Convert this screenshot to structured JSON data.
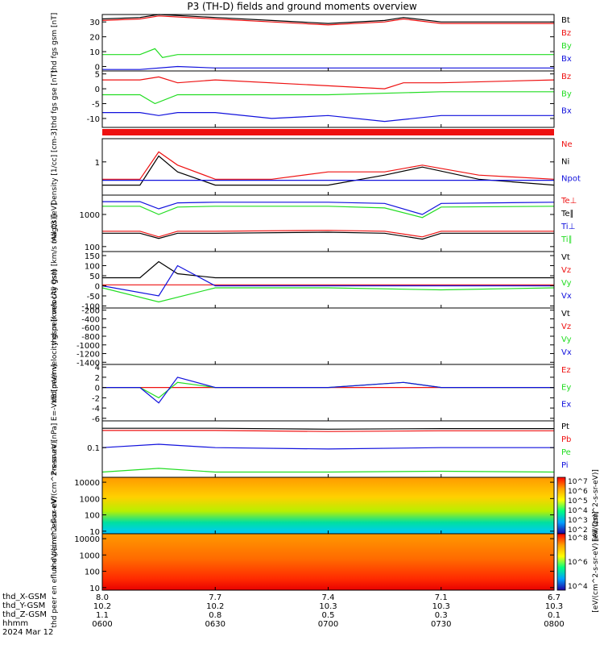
{
  "title": "P3 (TH-D) fields and ground moments overview",
  "colors": {
    "black": "#000000",
    "red": "#ee1111",
    "green": "#22dd22",
    "blue": "#1111dd"
  },
  "chart_data": [
    {
      "type": "line",
      "panel": "fgs_gsm",
      "ylabel": "thd fgs gsm [nT]",
      "ylim": [
        -3,
        35
      ],
      "yticks": [
        0,
        10,
        20,
        30
      ],
      "series": [
        {
          "name": "Bt",
          "color": "black",
          "x": [
            0,
            10,
            15,
            30,
            45,
            60,
            75,
            80,
            90,
            100,
            120
          ],
          "y": [
            32,
            33,
            35,
            33,
            31,
            29,
            31,
            33,
            30,
            30,
            30
          ]
        },
        {
          "name": "Bz",
          "color": "red",
          "x": [
            0,
            10,
            15,
            30,
            45,
            60,
            75,
            80,
            90,
            100,
            120
          ],
          "y": [
            31,
            32,
            34,
            32,
            30,
            28,
            30,
            32,
            29,
            29,
            29
          ]
        },
        {
          "name": "By",
          "color": "green",
          "x": [
            0,
            10,
            14,
            16,
            20,
            30,
            60,
            90,
            120
          ],
          "y": [
            8,
            8,
            12,
            6,
            8,
            8,
            8,
            8,
            8
          ]
        },
        {
          "name": "Bx",
          "color": "blue",
          "x": [
            0,
            10,
            20,
            30,
            60,
            90,
            120
          ],
          "y": [
            -2,
            -2,
            0,
            -1,
            -1,
            -1,
            -1
          ]
        }
      ]
    },
    {
      "type": "line",
      "panel": "fgs_gse",
      "ylabel": "thd fgs gse [nT]",
      "ylim": [
        -13,
        6
      ],
      "yticks": [
        -10,
        -5,
        0,
        5
      ],
      "series": [
        {
          "name": "Bz",
          "color": "red",
          "x": [
            0,
            10,
            15,
            20,
            30,
            60,
            75,
            80,
            90,
            120
          ],
          "y": [
            3,
            3,
            4,
            2,
            3,
            1,
            0,
            2,
            2,
            3
          ]
        },
        {
          "name": "By",
          "color": "green",
          "x": [
            0,
            10,
            14,
            20,
            30,
            60,
            90,
            120
          ],
          "y": [
            -2,
            -2,
            -5,
            -2,
            -2,
            -2,
            -1,
            -1
          ]
        },
        {
          "name": "Bx",
          "color": "blue",
          "x": [
            0,
            10,
            15,
            20,
            30,
            45,
            60,
            75,
            90,
            120
          ],
          "y": [
            -8,
            -8,
            -9,
            -8,
            -8,
            -10,
            -9,
            -11,
            -9,
            -9
          ]
        }
      ]
    },
    {
      "type": "line",
      "panel": "density",
      "ylabel": "Density [1/cc] [cm-3]",
      "scale": "log",
      "ylim": [
        0.1,
        5
      ],
      "yticks": [
        1
      ],
      "series": [
        {
          "name": "Ne",
          "color": "red",
          "x": [
            0,
            10,
            15,
            20,
            30,
            45,
            60,
            75,
            85,
            100,
            120
          ],
          "y": [
            0.3,
            0.3,
            2.0,
            0.8,
            0.3,
            0.3,
            0.5,
            0.5,
            0.8,
            0.4,
            0.3
          ]
        },
        {
          "name": "Ni",
          "color": "black",
          "x": [
            0,
            10,
            15,
            20,
            30,
            45,
            60,
            75,
            85,
            100,
            120
          ],
          "y": [
            0.2,
            0.2,
            1.5,
            0.5,
            0.2,
            0.2,
            0.2,
            0.4,
            0.7,
            0.3,
            0.2
          ]
        },
        {
          "name": "Npot",
          "color": "blue",
          "x": [
            0,
            120
          ],
          "y": [
            0.28,
            0.28
          ]
        }
      ]
    },
    {
      "type": "line",
      "panel": "temperature",
      "ylabel": "magt3 [eV]",
      "scale": "log",
      "ylim": [
        70,
        4000
      ],
      "yticks": [
        100,
        1000
      ],
      "series": [
        {
          "name": "Te⊥",
          "color": "red",
          "x": [
            0,
            10,
            15,
            20,
            30,
            60,
            75,
            85,
            90,
            120
          ],
          "y": [
            300,
            300,
            200,
            300,
            300,
            320,
            300,
            200,
            300,
            300
          ]
        },
        {
          "name": "Te∥",
          "color": "black",
          "x": [
            0,
            10,
            15,
            20,
            30,
            60,
            75,
            85,
            90,
            120
          ],
          "y": [
            260,
            260,
            180,
            260,
            260,
            280,
            260,
            170,
            260,
            260
          ]
        },
        {
          "name": "Ti⊥",
          "color": "blue",
          "x": [
            0,
            10,
            15,
            20,
            30,
            60,
            75,
            85,
            90,
            120
          ],
          "y": [
            2500,
            2500,
            1500,
            2300,
            2400,
            2400,
            2200,
            1000,
            2200,
            2400
          ]
        },
        {
          "name": "Ti∥",
          "color": "green",
          "x": [
            0,
            10,
            15,
            20,
            30,
            60,
            75,
            85,
            90,
            120
          ],
          "y": [
            1800,
            1800,
            1000,
            1700,
            1800,
            1800,
            1600,
            800,
            1700,
            1800
          ]
        }
      ]
    },
    {
      "type": "line",
      "panel": "peir_velocity",
      "ylabel": "thd peir velocity gsm [km/s (All Qs)]",
      "ylim": [
        -110,
        170
      ],
      "yticks": [
        -100,
        -50,
        0,
        50,
        100,
        150
      ],
      "series": [
        {
          "name": "Vt",
          "color": "black",
          "x": [
            0,
            10,
            15,
            20,
            30,
            60,
            90,
            120
          ],
          "y": [
            40,
            40,
            120,
            60,
            40,
            40,
            40,
            40
          ]
        },
        {
          "name": "Vz",
          "color": "red",
          "x": [
            0,
            30,
            60,
            90,
            120
          ],
          "y": [
            5,
            5,
            5,
            5,
            5
          ]
        },
        {
          "name": "Vy",
          "color": "green",
          "x": [
            0,
            15,
            30,
            60,
            90,
            120
          ],
          "y": [
            -10,
            -80,
            -10,
            -10,
            -20,
            -10
          ]
        },
        {
          "name": "Vx",
          "color": "blue",
          "x": [
            0,
            15,
            20,
            30,
            60,
            90,
            120
          ],
          "y": [
            0,
            -50,
            100,
            0,
            0,
            0,
            0
          ]
        }
      ]
    },
    {
      "type": "line",
      "panel": "peer_velocity",
      "ylabel": "thd peer velocity gsm [km/s (All Qs)]",
      "ylim": [
        -1450,
        -150
      ],
      "yticks": [
        -200,
        -400,
        -600,
        -800,
        -1000,
        -1200,
        -1400
      ],
      "series": [
        {
          "name": "Vt",
          "color": "black",
          "x": [],
          "y": []
        },
        {
          "name": "Vz",
          "color": "red",
          "x": [],
          "y": []
        },
        {
          "name": "Vy",
          "color": "green",
          "x": [],
          "y": []
        },
        {
          "name": "Vx",
          "color": "blue",
          "x": [],
          "y": []
        }
      ]
    },
    {
      "type": "line",
      "panel": "efield",
      "ylabel": "E=-VxB [mV/m]",
      "ylim": [
        -6.5,
        4.5
      ],
      "yticks": [
        4,
        2,
        0,
        -2,
        -4,
        -6
      ],
      "series": [
        {
          "name": "Ez",
          "color": "red",
          "x": [
            0,
            30,
            60,
            90,
            120
          ],
          "y": [
            0,
            0,
            0,
            0,
            0
          ]
        },
        {
          "name": "Ey",
          "color": "green",
          "x": [
            0,
            10,
            15,
            20,
            30,
            60,
            80,
            90,
            120
          ],
          "y": [
            0,
            0,
            -2,
            1,
            0,
            0,
            1,
            0,
            0
          ]
        },
        {
          "name": "Ex",
          "color": "blue",
          "x": [
            0,
            10,
            15,
            20,
            30,
            60,
            80,
            90,
            120
          ],
          "y": [
            0,
            0,
            -3,
            2,
            0,
            0,
            1,
            0,
            0
          ]
        }
      ]
    },
    {
      "type": "line",
      "panel": "pressure",
      "ylabel": "Pressure [nPa]",
      "scale": "log",
      "ylim": [
        0.01,
        0.8
      ],
      "yticks": [
        0.1
      ],
      "series": [
        {
          "name": "Pt",
          "color": "black",
          "x": [
            0,
            30,
            60,
            90,
            120
          ],
          "y": [
            0.45,
            0.45,
            0.42,
            0.44,
            0.44
          ]
        },
        {
          "name": "Pb",
          "color": "red",
          "x": [
            0,
            30,
            60,
            90,
            120
          ],
          "y": [
            0.38,
            0.38,
            0.35,
            0.37,
            0.37
          ]
        },
        {
          "name": "Pe",
          "color": "green",
          "x": [
            0,
            15,
            30,
            60,
            90,
            120
          ],
          "y": [
            0.015,
            0.02,
            0.015,
            0.015,
            0.016,
            0.015
          ]
        },
        {
          "name": "Pi",
          "color": "blue",
          "x": [
            0,
            15,
            30,
            60,
            90,
            120
          ],
          "y": [
            0.1,
            0.13,
            0.1,
            0.09,
            0.1,
            0.1
          ]
        }
      ]
    },
    {
      "type": "heatmap",
      "panel": "peir_en_eflux",
      "ylabel": "thd peir en eflux eV/(cm^2-s-sr-eV)",
      "scale": "log",
      "ylim": [
        7,
        20000
      ],
      "yticks": [
        10,
        100,
        1000,
        10000
      ],
      "colorbar": {
        "label": "[eV/(cm^2-s-sr-eV)]",
        "ticks": [
          "10^7",
          "10^6",
          "10^5",
          "10^4",
          "10^3",
          "10^2"
        ]
      }
    },
    {
      "type": "heatmap",
      "panel": "peer_en_eflux",
      "ylabel": "thd peer en eflux eV/(cm^2-s-sr-eV)",
      "scale": "log",
      "ylim": [
        7,
        20000
      ],
      "yticks": [
        10,
        100,
        1000,
        10000
      ],
      "colorbar": {
        "label": "[eV/(cm^2-s-sr-eV) (All Qs)]",
        "ticks": [
          "10^8",
          "10^6",
          "10^4"
        ]
      }
    }
  ],
  "xaxis": {
    "rows": [
      "thd_X-GSM",
      "thd_Y-GSM",
      "thd_Z-GSM",
      "hhmm",
      "2024 Mar 12"
    ],
    "ticks": [
      {
        "x": 0,
        "vals": [
          "8.0",
          "10.2",
          "1.1",
          "0600"
        ]
      },
      {
        "x": 30,
        "vals": [
          "7.7",
          "10.2",
          "0.8",
          "0630"
        ]
      },
      {
        "x": 60,
        "vals": [
          "7.4",
          "10.3",
          "0.5",
          "0700"
        ]
      },
      {
        "x": 90,
        "vals": [
          "7.1",
          "10.3",
          "0.3",
          "0730"
        ]
      },
      {
        "x": 120,
        "vals": [
          "6.7",
          "10.3",
          "0.1",
          "0800"
        ]
      }
    ]
  }
}
